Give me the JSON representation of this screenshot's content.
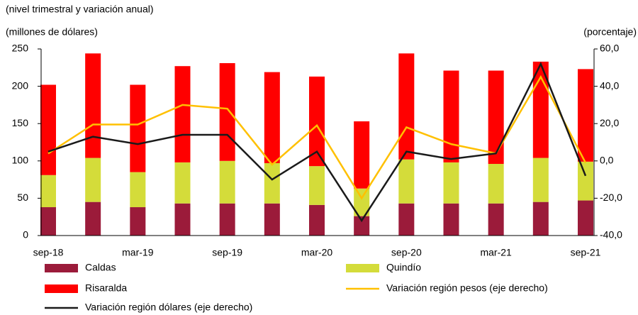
{
  "chart_data": {
    "type": "bar",
    "stacked": true,
    "title": "(nivel trimestral y variación anual)",
    "y_label": "(millones de dólares)",
    "y2_label": "(porcentaje)",
    "categories": [
      "sep-18",
      null,
      "mar-19",
      null,
      "sep-19",
      null,
      "mar-20",
      null,
      "sep-20",
      null,
      "mar-21",
      null,
      "sep-21"
    ],
    "series": [
      {
        "name": "Caldas",
        "color": "#9b1b3a",
        "values": [
          38,
          45,
          38,
          43,
          43,
          43,
          41,
          26,
          43,
          43,
          43,
          45,
          47
        ]
      },
      {
        "name": "Quindío",
        "color": "#d4dc3a",
        "values": [
          43,
          59,
          47,
          55,
          57,
          54,
          52,
          37,
          59,
          55,
          53,
          59,
          52
        ]
      },
      {
        "name": "Risaralda",
        "color": "#ff0000",
        "values": [
          121,
          140,
          117,
          129,
          131,
          122,
          120,
          90,
          142,
          123,
          125,
          129,
          124
        ]
      },
      {
        "name": "Variación región pesos (eje derecho)",
        "color": "#ffc000",
        "type": "line",
        "axis": "y2",
        "values": [
          4,
          19.5,
          19.5,
          30,
          28,
          -2,
          19,
          -20,
          18,
          9,
          4,
          45,
          -1
        ]
      },
      {
        "name": "Variación región dólares (eje derecho)",
        "color": "#1a1a1a",
        "type": "line",
        "axis": "y2",
        "values": [
          5,
          13,
          9,
          14,
          14,
          -10,
          5,
          -32,
          5,
          1,
          4,
          52,
          -8
        ]
      }
    ],
    "ylim": [
      0,
      250
    ],
    "yticks": [
      0,
      50,
      100,
      150,
      200,
      250
    ],
    "y2lim": [
      -40,
      60
    ],
    "y2ticks": [
      {
        "value": -40,
        "label": "-40,0"
      },
      {
        "value": -20,
        "label": "-20,0"
      },
      {
        "value": 0,
        "label": "0,0"
      },
      {
        "value": 20,
        "label": "20,0"
      },
      {
        "value": 40,
        "label": "40,0"
      },
      {
        "value": 60,
        "label": "60,0"
      }
    ]
  }
}
